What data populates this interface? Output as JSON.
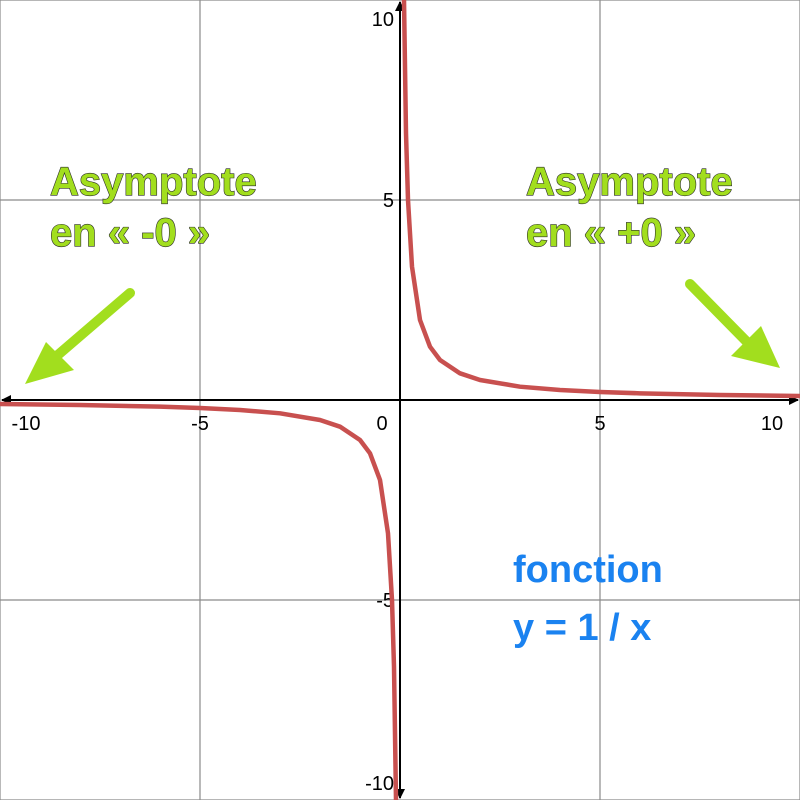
{
  "chart_data": {
    "type": "line",
    "xlim": [
      -10,
      10
    ],
    "ylim": [
      -10,
      10
    ],
    "grid": true,
    "x_ticks": [
      -10,
      -5,
      0,
      5,
      10
    ],
    "y_ticks": [
      -10,
      -5,
      5,
      10
    ],
    "x_tick_labels": [
      "-10",
      "-5",
      "0",
      "5",
      "10"
    ],
    "y_tick_labels": [
      "-10",
      "-5",
      "5",
      "10"
    ],
    "series": [
      {
        "function": "1/x",
        "x": [
          -10,
          -8,
          -6,
          -5,
          -4,
          -3,
          -2,
          -1.5,
          -1,
          -0.75,
          -0.5,
          -0.3,
          -0.2,
          -0.15,
          -0.1,
          0.1,
          0.15,
          0.2,
          0.3,
          0.5,
          0.75,
          1,
          1.5,
          2,
          3,
          4,
          5,
          6,
          8,
          10
        ],
        "y": [
          -0.1,
          -0.125,
          -0.167,
          -0.2,
          -0.25,
          -0.333,
          -0.5,
          -0.667,
          -1,
          -1.333,
          -2,
          -3.333,
          -5,
          -6.667,
          -10,
          10,
          6.667,
          5,
          3.333,
          2,
          1.333,
          1,
          0.667,
          0.5,
          0.333,
          0.25,
          0.2,
          0.167,
          0.125,
          0.1
        ]
      }
    ],
    "annotations": {
      "left": {
        "line1": "Asymptote",
        "line2": "en « -0 »"
      },
      "right": {
        "line1": "Asymptote",
        "line2": "en « +0 »"
      },
      "function": {
        "line1": "fonction",
        "line2": "y = 1 / x"
      }
    }
  },
  "colors": {
    "curve": "#c8504f",
    "grid": "#8a8a8a",
    "axis": "#000000",
    "annotation_green": "#a2de1e",
    "annotation_blue": "#1a82f0"
  }
}
